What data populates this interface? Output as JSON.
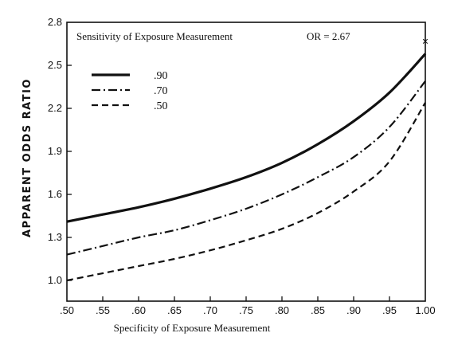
{
  "chart_data": {
    "type": "line",
    "title": "",
    "xlabel": "Specificity of Exposure Measurement",
    "ylabel": "APPARENT ODDS RATIO",
    "legend_title": "Sensitivity of Exposure Measurement",
    "annotation": "OR = 2.67",
    "xlim": [
      0.5,
      1.0
    ],
    "ylim": [
      0.85,
      2.8
    ],
    "x_tick_values": [
      0.5,
      0.55,
      0.6,
      0.65,
      0.7,
      0.75,
      0.8,
      0.85,
      0.9,
      0.95,
      1.0
    ],
    "x_tick_labels": [
      ".50",
      ".55",
      ".60",
      ".65",
      ".70",
      ".75",
      ".80",
      ".85",
      ".90",
      ".95",
      "1.00"
    ],
    "y_tick_values": [
      1.0,
      1.3,
      1.6,
      1.9,
      2.2,
      2.5,
      2.8
    ],
    "y_tick_labels": [
      "1.0",
      "1.3",
      "1.6",
      "1.9",
      "2.2",
      "2.5",
      "2.8"
    ],
    "grid": false,
    "legend_position": "top-left",
    "x": [
      0.5,
      0.55,
      0.6,
      0.65,
      0.7,
      0.75,
      0.8,
      0.85,
      0.9,
      0.95,
      1.0
    ],
    "series": [
      {
        "name": ".90",
        "style": "solid",
        "values": [
          1.41,
          1.46,
          1.51,
          1.57,
          1.64,
          1.72,
          1.82,
          1.95,
          2.11,
          2.31,
          2.58
        ]
      },
      {
        "name": ".70",
        "style": "dash-dot",
        "values": [
          1.18,
          1.24,
          1.3,
          1.35,
          1.42,
          1.5,
          1.6,
          1.72,
          1.86,
          2.07,
          2.39
        ]
      },
      {
        "name": ".50",
        "style": "dashed",
        "values": [
          1.0,
          1.05,
          1.1,
          1.15,
          1.21,
          1.28,
          1.36,
          1.47,
          1.62,
          1.83,
          2.24
        ]
      }
    ],
    "marker_point": {
      "x": 1.0,
      "y": 2.67,
      "symbol": "×"
    }
  }
}
